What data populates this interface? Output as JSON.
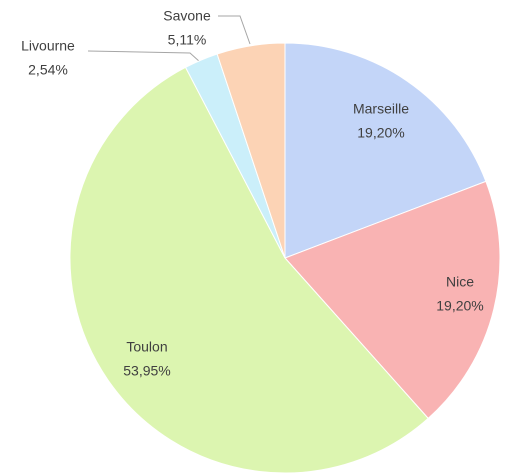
{
  "chart_data": {
    "type": "pie",
    "categories": [
      "Marseille",
      "Nice",
      "Toulon",
      "Livourne",
      "Savone"
    ],
    "values": [
      19.2,
      19.2,
      53.95,
      2.54,
      5.11
    ],
    "value_labels": [
      "19,20%",
      "19,20%",
      "53,95%",
      "2,54%",
      "5,11%"
    ],
    "colors": [
      "#c3d5f8",
      "#f9b3b3",
      "#dcf5b0",
      "#cbeffa",
      "#fcd3b5"
    ]
  }
}
